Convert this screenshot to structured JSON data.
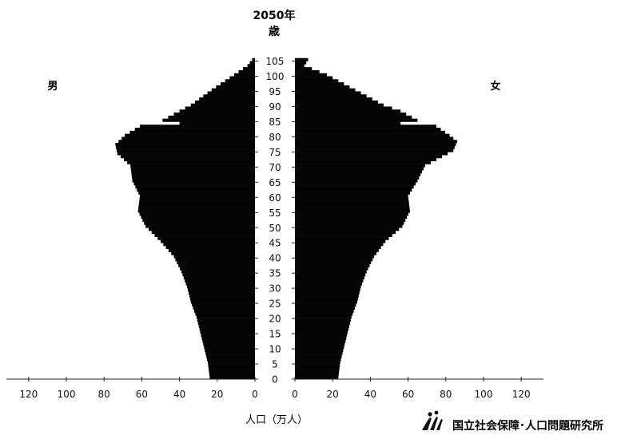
{
  "chart_data": {
    "type": "bar",
    "orientation": "population-pyramid",
    "title": "2050年",
    "age_unit_label": "歳",
    "xlabel": "人口（万人）",
    "age_ticks": [
      0,
      5,
      10,
      15,
      20,
      25,
      30,
      35,
      40,
      45,
      50,
      55,
      60,
      65,
      70,
      75,
      80,
      85,
      90,
      95,
      100,
      105
    ],
    "value_ticks": [
      0,
      20,
      40,
      60,
      80,
      100,
      120
    ],
    "xlim": [
      0,
      120
    ],
    "age_range": [
      0,
      105
    ],
    "grid": false,
    "legend": "none",
    "series": [
      {
        "name": "男",
        "side": "left",
        "anchors": [
          [
            0,
            24
          ],
          [
            5,
            25
          ],
          [
            10,
            27
          ],
          [
            15,
            29
          ],
          [
            20,
            31
          ],
          [
            25,
            34
          ],
          [
            30,
            36
          ],
          [
            35,
            39
          ],
          [
            40,
            43
          ],
          [
            45,
            50
          ],
          [
            50,
            58
          ],
          [
            55,
            62
          ],
          [
            60,
            61
          ],
          [
            65,
            65
          ],
          [
            70,
            66
          ],
          [
            74,
            73
          ],
          [
            77,
            74
          ],
          [
            80,
            69
          ],
          [
            83,
            61
          ],
          [
            84,
            40
          ],
          [
            85,
            49
          ],
          [
            88,
            40
          ],
          [
            90,
            34
          ],
          [
            95,
            23
          ],
          [
            100,
            11
          ],
          [
            103,
            4
          ],
          [
            105,
            1.5
          ]
        ]
      },
      {
        "name": "女",
        "side": "right",
        "anchors": [
          [
            0,
            23
          ],
          [
            5,
            24
          ],
          [
            10,
            26
          ],
          [
            15,
            28
          ],
          [
            20,
            30
          ],
          [
            25,
            33
          ],
          [
            30,
            35
          ],
          [
            35,
            38
          ],
          [
            40,
            42
          ],
          [
            45,
            48
          ],
          [
            50,
            57
          ],
          [
            55,
            61
          ],
          [
            60,
            60
          ],
          [
            65,
            65
          ],
          [
            70,
            69
          ],
          [
            75,
            84
          ],
          [
            78,
            86
          ],
          [
            80,
            82
          ],
          [
            83,
            75
          ],
          [
            84,
            56
          ],
          [
            85,
            65
          ],
          [
            88,
            56
          ],
          [
            90,
            47
          ],
          [
            95,
            32
          ],
          [
            100,
            17
          ],
          [
            103,
            5
          ],
          [
            105,
            7
          ]
        ]
      }
    ]
  },
  "labels": {
    "male": "男",
    "female": "女"
  },
  "logo": {
    "text": "国立社会保障･人口問題研究所"
  },
  "colors": {
    "bars": "#050505",
    "text": "#111111",
    "axis": "#222222"
  }
}
